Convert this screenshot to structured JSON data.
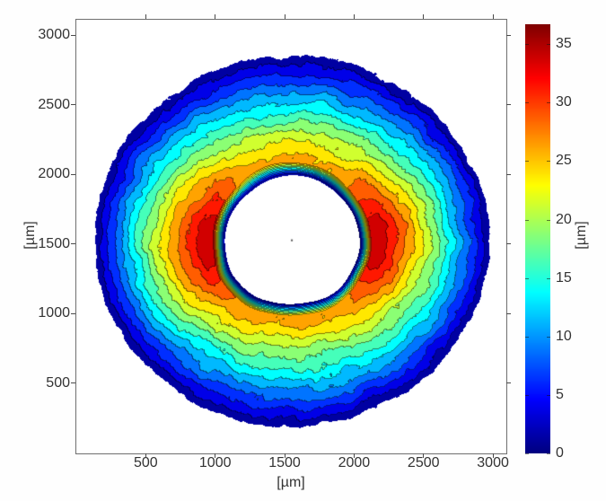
{
  "figure": {
    "background_color": "#ffffff",
    "description": "MATLAB-style filled contour map (jet colormap) of an annular height distribution measured around a central circular hole, with a vertical colorbar on the right."
  },
  "chart_data": {
    "type": "contour",
    "title": "",
    "xlabel": "[µm]",
    "ylabel": "[µm]",
    "xlim": [
      0,
      3090
    ],
    "ylim": [
      0,
      3110
    ],
    "xticks": [
      500,
      1000,
      1500,
      2000,
      2500,
      3000
    ],
    "yticks": [
      500,
      1000,
      1500,
      2000,
      2500,
      3000
    ],
    "grid": false,
    "legend": null,
    "colormap": "jet",
    "contour_levels": [
      0,
      2.5,
      5,
      7.5,
      10,
      12.5,
      15,
      17.5,
      20,
      22.5,
      25,
      27.5,
      30,
      32.5,
      35
    ],
    "colorbar": {
      "position": "right",
      "label": "[µm]",
      "ticks": [
        0,
        5,
        10,
        15,
        20,
        25,
        30,
        35
      ],
      "vmin": 0,
      "vmax": 36.7,
      "min_color": "#0000a0",
      "max_color": "#860000"
    },
    "field": {
      "description": "Ring-shaped (donut) surface: value 0 at the rim of the central white hole, steep rise to a plateau annulus, two red hot-spot lobes left and right of the hole, gradual noisy decay to 0 at the jagged elliptical outer boundary; white = no data.",
      "center_um": [
        1552,
        1520
      ],
      "hole_semi_axes_um": [
        488,
        464
      ],
      "inner_ramp_um": 90,
      "outer_semi_axes_um": [
        1420,
        1330
      ],
      "plateau_end_frac": 0.46,
      "peak_base_um": 25.3,
      "lobe_amplitude_um": 9.2,
      "lobe_exponent": 2.2,
      "noise_amplitude_um": 2.1,
      "max_value_um": 36.5,
      "hot_spots": [
        {
          "x_um": 930,
          "y_um": 1540,
          "peak_um": 34
        },
        {
          "x_um": 2160,
          "y_um": 1550,
          "peak_um": 34
        }
      ],
      "center_marker": {
        "x_um": 1552,
        "y_um": 1525,
        "color": "#555555"
      }
    }
  }
}
